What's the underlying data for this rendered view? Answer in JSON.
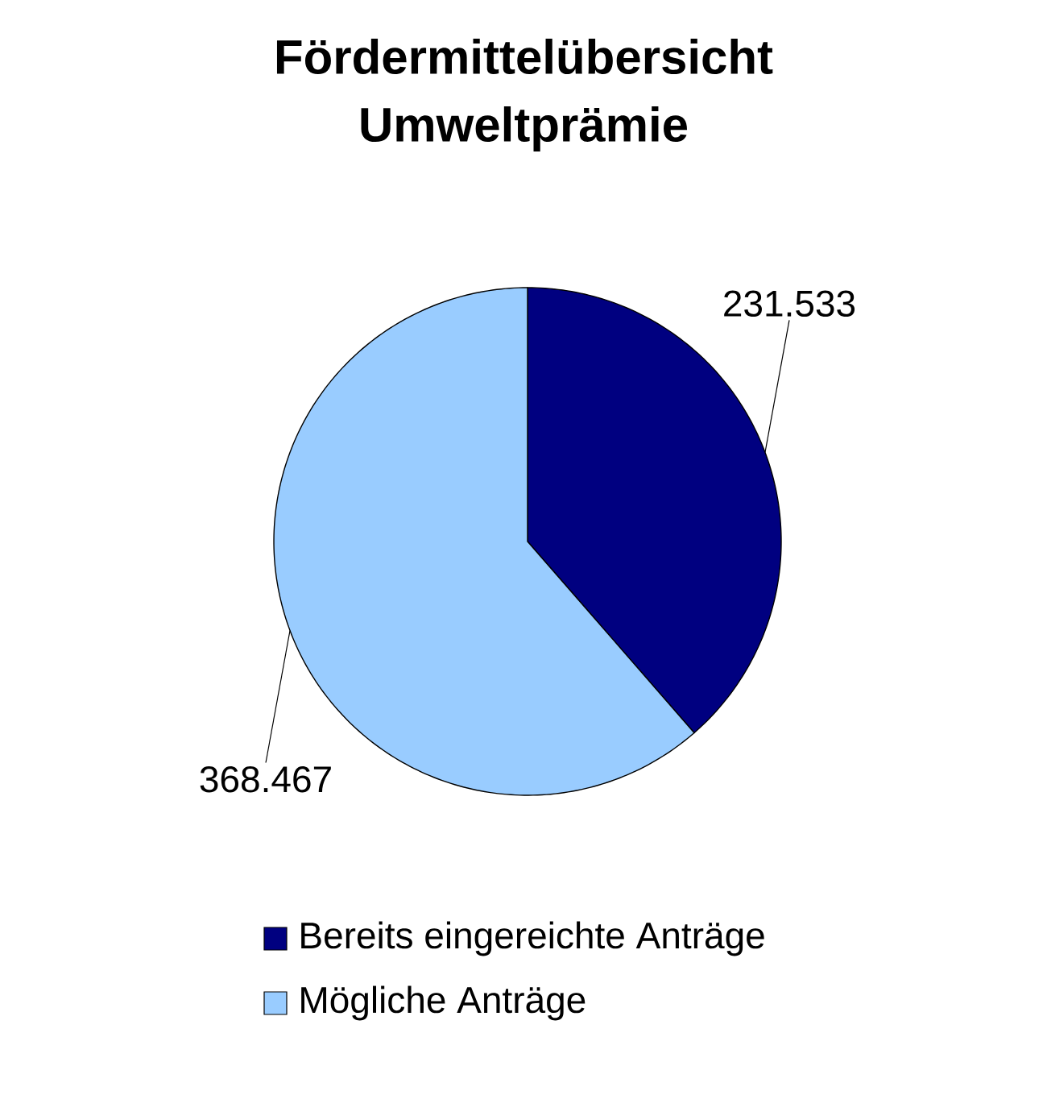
{
  "chart_data": {
    "type": "pie",
    "title": "Fördermittelübersicht Umweltprämie",
    "categories": [
      "Bereits eingereichte Anträge",
      "Mögliche Anträge"
    ],
    "values": [
      231533,
      368467
    ],
    "value_labels": [
      "231.533",
      "368.467"
    ],
    "colors": [
      "#000080",
      "#99ccff"
    ],
    "legend": "bottom"
  }
}
